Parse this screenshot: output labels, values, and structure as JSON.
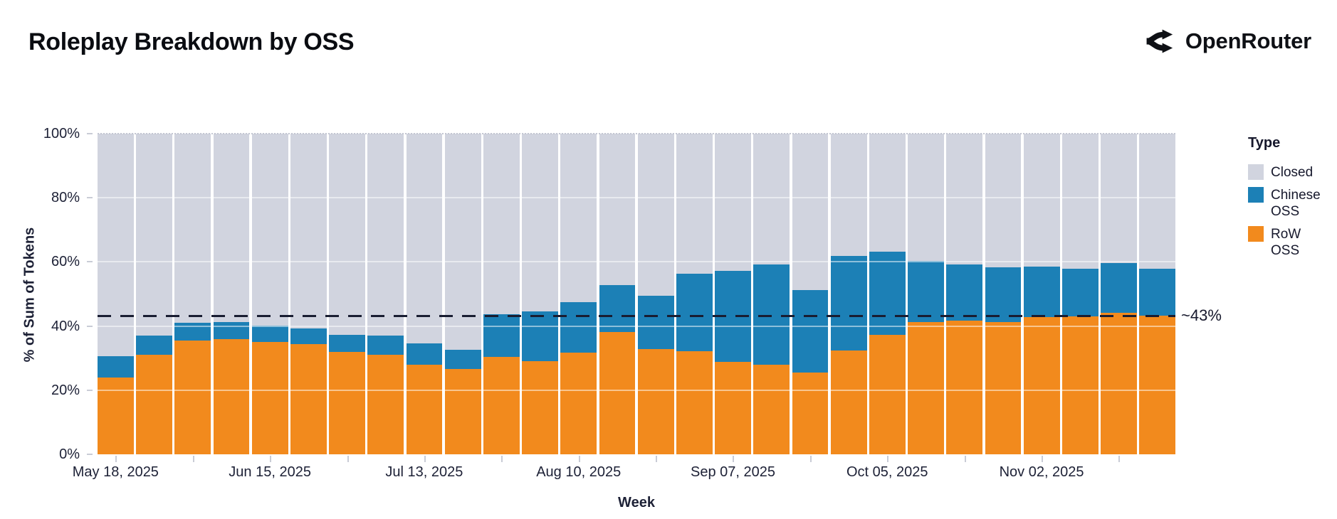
{
  "header": {
    "title": "Roleplay Breakdown by OSS",
    "brand": "OpenRouter"
  },
  "chart_data": {
    "type": "bar",
    "variant": "stacked-100pct-weekly",
    "title": "Roleplay Breakdown by OSS",
    "xlabel": "Week",
    "ylabel": "% of Sum of Tokens",
    "ylim": [
      0,
      100
    ],
    "grid": true,
    "y_ticks": [
      "0%",
      "20%",
      "40%",
      "60%",
      "80%",
      "100%"
    ],
    "x_tick_labels": [
      "May 18, 2025",
      "Jun 15, 2025",
      "Jul 13, 2025",
      "Aug 10, 2025",
      "Sep 07, 2025",
      "Oct 05, 2025",
      "Nov 02, 2025"
    ],
    "x_tick_positions": [
      0,
      4,
      8,
      12,
      16,
      20,
      24
    ],
    "minor_tick_every": 2,
    "categories": [
      "May 18, 2025",
      "May 25, 2025",
      "Jun 01, 2025",
      "Jun 08, 2025",
      "Jun 15, 2025",
      "Jun 22, 2025",
      "Jun 29, 2025",
      "Jul 06, 2025",
      "Jul 13, 2025",
      "Jul 20, 2025",
      "Jul 27, 2025",
      "Aug 03, 2025",
      "Aug 10, 2025",
      "Aug 17, 2025",
      "Aug 24, 2025",
      "Aug 31, 2025",
      "Sep 07, 2025",
      "Sep 14, 2025",
      "Sep 21, 2025",
      "Sep 28, 2025",
      "Oct 05, 2025",
      "Oct 12, 2025",
      "Oct 19, 2025",
      "Oct 26, 2025",
      "Nov 02, 2025",
      "Nov 09, 2025",
      "Nov 16, 2025",
      "Nov 23, 2025"
    ],
    "series": [
      {
        "name": "RoW OSS",
        "color": "#F28A1D",
        "values": [
          24.0,
          31.0,
          35.5,
          36.0,
          35.0,
          34.3,
          32.0,
          31.0,
          28.0,
          26.5,
          30.3,
          29.0,
          31.6,
          38.2,
          32.8,
          32.1,
          28.8,
          28.0,
          25.6,
          32.4,
          37.2,
          41.2,
          41.6,
          41.3,
          42.7,
          43.0,
          44.1,
          43.3
        ]
      },
      {
        "name": "Chinese OSS",
        "color": "#1C80B6",
        "values": [
          6.5,
          6.0,
          5.5,
          5.3,
          5.2,
          5.0,
          5.3,
          6.0,
          6.5,
          6.0,
          13.3,
          15.5,
          15.9,
          14.6,
          16.6,
          24.3,
          28.3,
          31.3,
          25.7,
          29.5,
          26.0,
          19.0,
          17.5,
          17.1,
          15.9,
          14.9,
          15.5,
          14.5
        ]
      },
      {
        "name": "Closed",
        "color": "#D1D4DF",
        "values": [
          69.5,
          63.0,
          59.0,
          58.7,
          59.8,
          60.7,
          62.7,
          63.0,
          65.5,
          67.5,
          56.4,
          55.5,
          52.5,
          47.2,
          50.6,
          43.6,
          42.9,
          40.7,
          48.7,
          38.1,
          36.8,
          39.8,
          40.9,
          41.6,
          41.4,
          42.1,
          40.4,
          42.2
        ]
      }
    ],
    "reference_line": {
      "value": 43.3,
      "label": "~43%",
      "style": "dashed",
      "color": "#191d31"
    },
    "legend": {
      "title": "Type",
      "position": "right",
      "entries": [
        {
          "label": "Closed",
          "color": "#D1D4DF"
        },
        {
          "label": "Chinese OSS",
          "color": "#1C80B6"
        },
        {
          "label": "RoW OSS",
          "color": "#F28A1D"
        }
      ]
    }
  }
}
